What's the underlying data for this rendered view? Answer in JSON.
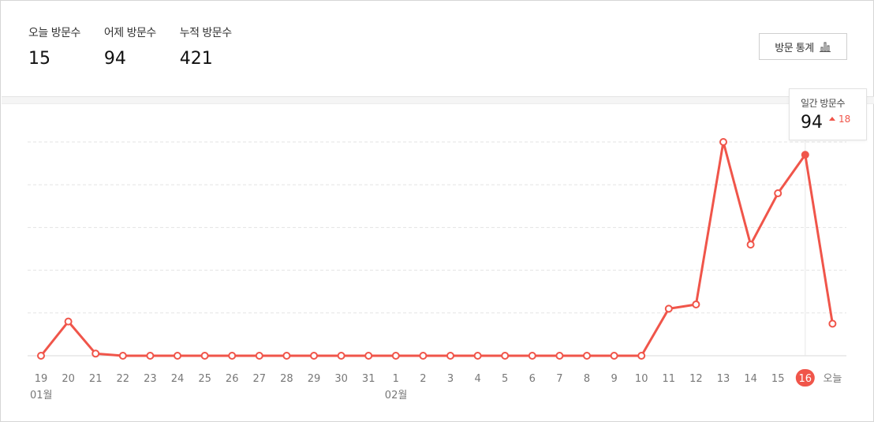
{
  "stats": {
    "today_label": "오늘 방문수",
    "today_value": "15",
    "yesterday_label": "어제 방문수",
    "yesterday_value": "94",
    "total_label": "누적 방문수",
    "total_value": "421"
  },
  "button": {
    "label": "방문 통계",
    "icon": "bar-chart-icon"
  },
  "tooltip": {
    "label": "일간 방문수",
    "value": "94",
    "delta": "18",
    "delta_direction": "up"
  },
  "chart_data": {
    "type": "line",
    "categories": [
      "19",
      "20",
      "21",
      "22",
      "23",
      "24",
      "25",
      "26",
      "27",
      "28",
      "29",
      "30",
      "31",
      "1",
      "2",
      "3",
      "4",
      "5",
      "6",
      "7",
      "8",
      "9",
      "10",
      "11",
      "12",
      "13",
      "14",
      "15",
      "16",
      "오늘"
    ],
    "month_labels": [
      {
        "category_index": 0,
        "label": "01월"
      },
      {
        "category_index": 13,
        "label": "02월"
      }
    ],
    "series": [
      {
        "values": [
          0,
          16,
          1,
          0,
          0,
          0,
          0,
          0,
          0,
          0,
          0,
          0,
          0,
          0,
          0,
          0,
          0,
          0,
          0,
          0,
          0,
          0,
          0,
          22,
          24,
          100,
          52,
          76,
          94,
          15
        ]
      }
    ],
    "ylim": [
      0,
      100
    ],
    "grid": true,
    "highlight_index": 28,
    "colors": {
      "line": "#f0554a",
      "highlight_badge": "#f0554a",
      "grid": "#e3e3e3",
      "axis_text": "#777777"
    }
  }
}
